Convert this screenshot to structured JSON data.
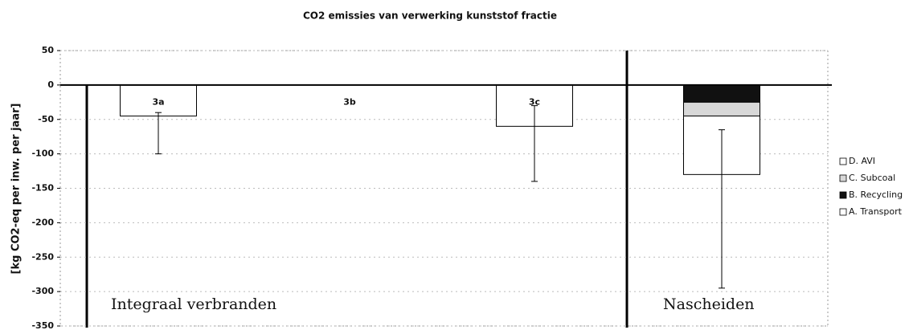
{
  "chart_data": {
    "type": "bar",
    "stacked": true,
    "title": "CO2 emissies van verwerking kunststof fractie",
    "y_label": "[kg CO2-eq per inw. per jaar]",
    "categories": [
      "3a",
      "3b",
      "3c",
      null
    ],
    "series": [
      {
        "name": "A. Transport",
        "color": "#ffffff",
        "values": [
          0,
          0,
          0,
          0
        ]
      },
      {
        "name": "B. Recycling",
        "color": "#111111",
        "values": [
          0,
          0,
          0,
          -25
        ]
      },
      {
        "name": "C. Subcoal",
        "color": "#d8d8d8",
        "values": [
          0,
          0,
          0,
          -20
        ]
      },
      {
        "name": "D. AVI",
        "color": "#ffffff",
        "values": [
          -45,
          0,
          -60,
          -85
        ]
      }
    ],
    "error_bars": [
      {
        "high": -40,
        "low": -100
      },
      null,
      {
        "high": -30,
        "low": -140
      },
      {
        "high": -65,
        "low": -295
      }
    ],
    "annotations": [
      "Integraal verbranden",
      "Nascheiden"
    ],
    "ylim": [
      -350,
      50
    ],
    "yticks": [
      -350,
      -300,
      -250,
      -200,
      -150,
      -100,
      -50,
      0,
      50
    ],
    "grid": true,
    "legend": "right"
  }
}
